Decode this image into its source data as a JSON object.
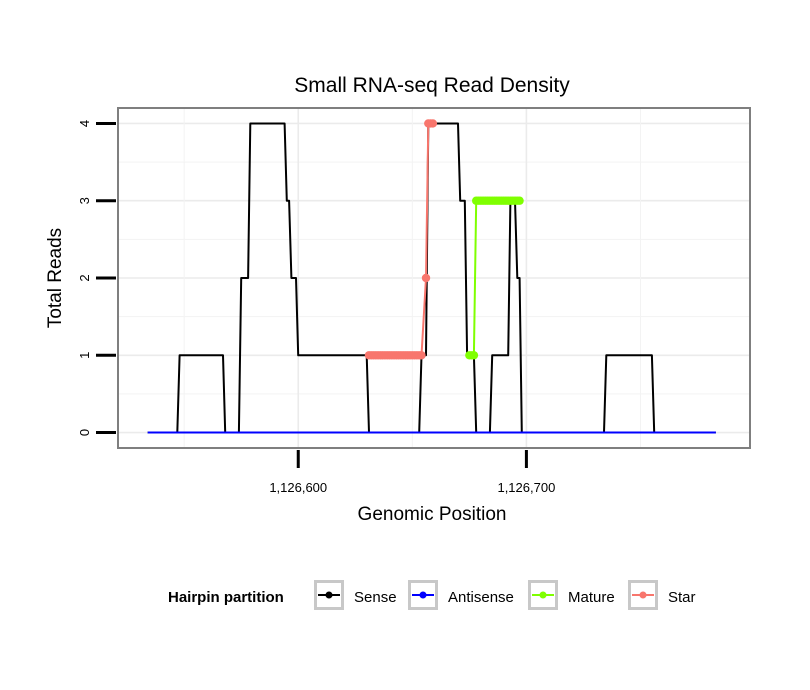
{
  "chart_data": {
    "type": "line",
    "title": "Small RNA-seq Read Density",
    "xlabel": "Genomic Position",
    "ylabel": "Total Reads",
    "xlim": [
      1126521,
      1126798
    ],
    "ylim": [
      -0.2,
      4.2
    ],
    "x_ticks": [
      1126600,
      1126700
    ],
    "x_tick_labels": [
      "1,126,600",
      "1,126,700"
    ],
    "y_ticks": [
      0,
      1,
      2,
      3,
      4
    ],
    "y_tick_labels": [
      "0",
      "1",
      "2",
      "3",
      "4"
    ],
    "grid": true,
    "legend_position": "bottom",
    "legend_title": "Hairpin partition",
    "series": [
      {
        "name": "Sense",
        "color": "#000000",
        "x": [
          1126534,
          1126547,
          1126548,
          1126567,
          1126568,
          1126574,
          1126575,
          1126578,
          1126579,
          1126594,
          1126595,
          1126596,
          1126597,
          1126599,
          1126600,
          1126630,
          1126631,
          1126653,
          1126654,
          1126656,
          1126657,
          1126670,
          1126671,
          1126673,
          1126674,
          1126677,
          1126678,
          1126684,
          1126685,
          1126692,
          1126693,
          1126695,
          1126696,
          1126697,
          1126698,
          1126734,
          1126735,
          1126755,
          1126756,
          1126783
        ],
        "y": [
          0,
          0,
          1,
          1,
          0,
          0,
          2,
          2,
          4,
          4,
          3,
          3,
          2,
          2,
          1,
          1,
          0,
          0,
          1,
          1,
          4,
          4,
          3,
          3,
          1,
          1,
          0,
          0,
          1,
          1,
          3,
          3,
          2,
          2,
          0,
          0,
          1,
          1,
          0,
          0
        ]
      },
      {
        "name": "Antisense",
        "color": "#0000ff",
        "x": [
          1126534,
          1126783
        ],
        "y": [
          0,
          0
        ]
      },
      {
        "name": "Mature",
        "color": "#7fff00",
        "x": [
          1126675,
          1126676,
          1126677,
          1126678,
          1126679,
          1126680,
          1126681,
          1126682,
          1126683,
          1126684,
          1126685,
          1126686,
          1126687,
          1126688,
          1126689,
          1126690,
          1126691,
          1126692,
          1126693,
          1126694,
          1126695,
          1126696,
          1126697
        ],
        "y": [
          1,
          1,
          1,
          3,
          3,
          3,
          3,
          3,
          3,
          3,
          3,
          3,
          3,
          3,
          3,
          3,
          3,
          3,
          3,
          3,
          3,
          3,
          3
        ]
      },
      {
        "name": "Star",
        "color": "#f8766d",
        "x": [
          1126631,
          1126632,
          1126633,
          1126634,
          1126635,
          1126636,
          1126637,
          1126638,
          1126639,
          1126640,
          1126641,
          1126642,
          1126643,
          1126644,
          1126645,
          1126646,
          1126647,
          1126648,
          1126649,
          1126650,
          1126651,
          1126652,
          1126653,
          1126654,
          1126656,
          1126657,
          1126658,
          1126659
        ],
        "y": [
          1,
          1,
          1,
          1,
          1,
          1,
          1,
          1,
          1,
          1,
          1,
          1,
          1,
          1,
          1,
          1,
          1,
          1,
          1,
          1,
          1,
          1,
          1,
          1,
          2,
          4,
          4,
          4
        ]
      }
    ]
  }
}
